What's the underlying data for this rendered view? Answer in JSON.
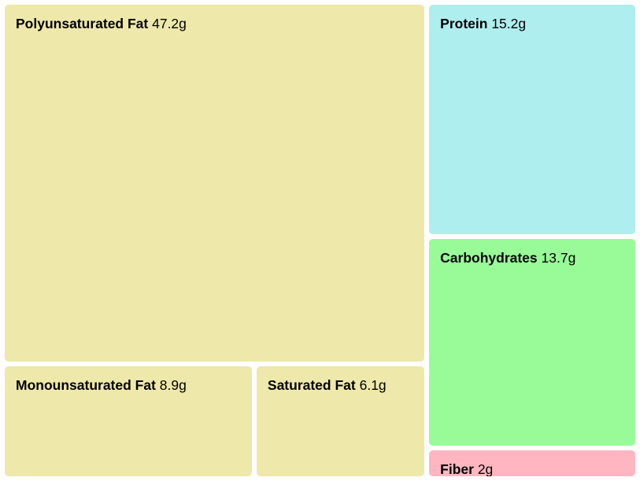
{
  "chart_data": {
    "type": "treemap",
    "unit": "g",
    "items": [
      {
        "name": "Polyunsaturated Fat",
        "value": 47.2,
        "label": "47.2g",
        "color": "#eee8aa"
      },
      {
        "name": "Monounsaturated Fat",
        "value": 8.9,
        "label": "8.9g",
        "color": "#eee8aa"
      },
      {
        "name": "Saturated Fat",
        "value": 6.1,
        "label": "6.1g",
        "color": "#eee8aa"
      },
      {
        "name": "Protein",
        "value": 15.2,
        "label": "15.2g",
        "color": "#afeeee"
      },
      {
        "name": "Carbohydrates",
        "value": 13.7,
        "label": "13.7g",
        "color": "#98fb98"
      },
      {
        "name": "Fiber",
        "value": 2,
        "label": "2g",
        "color": "#ffb6c1"
      }
    ]
  }
}
